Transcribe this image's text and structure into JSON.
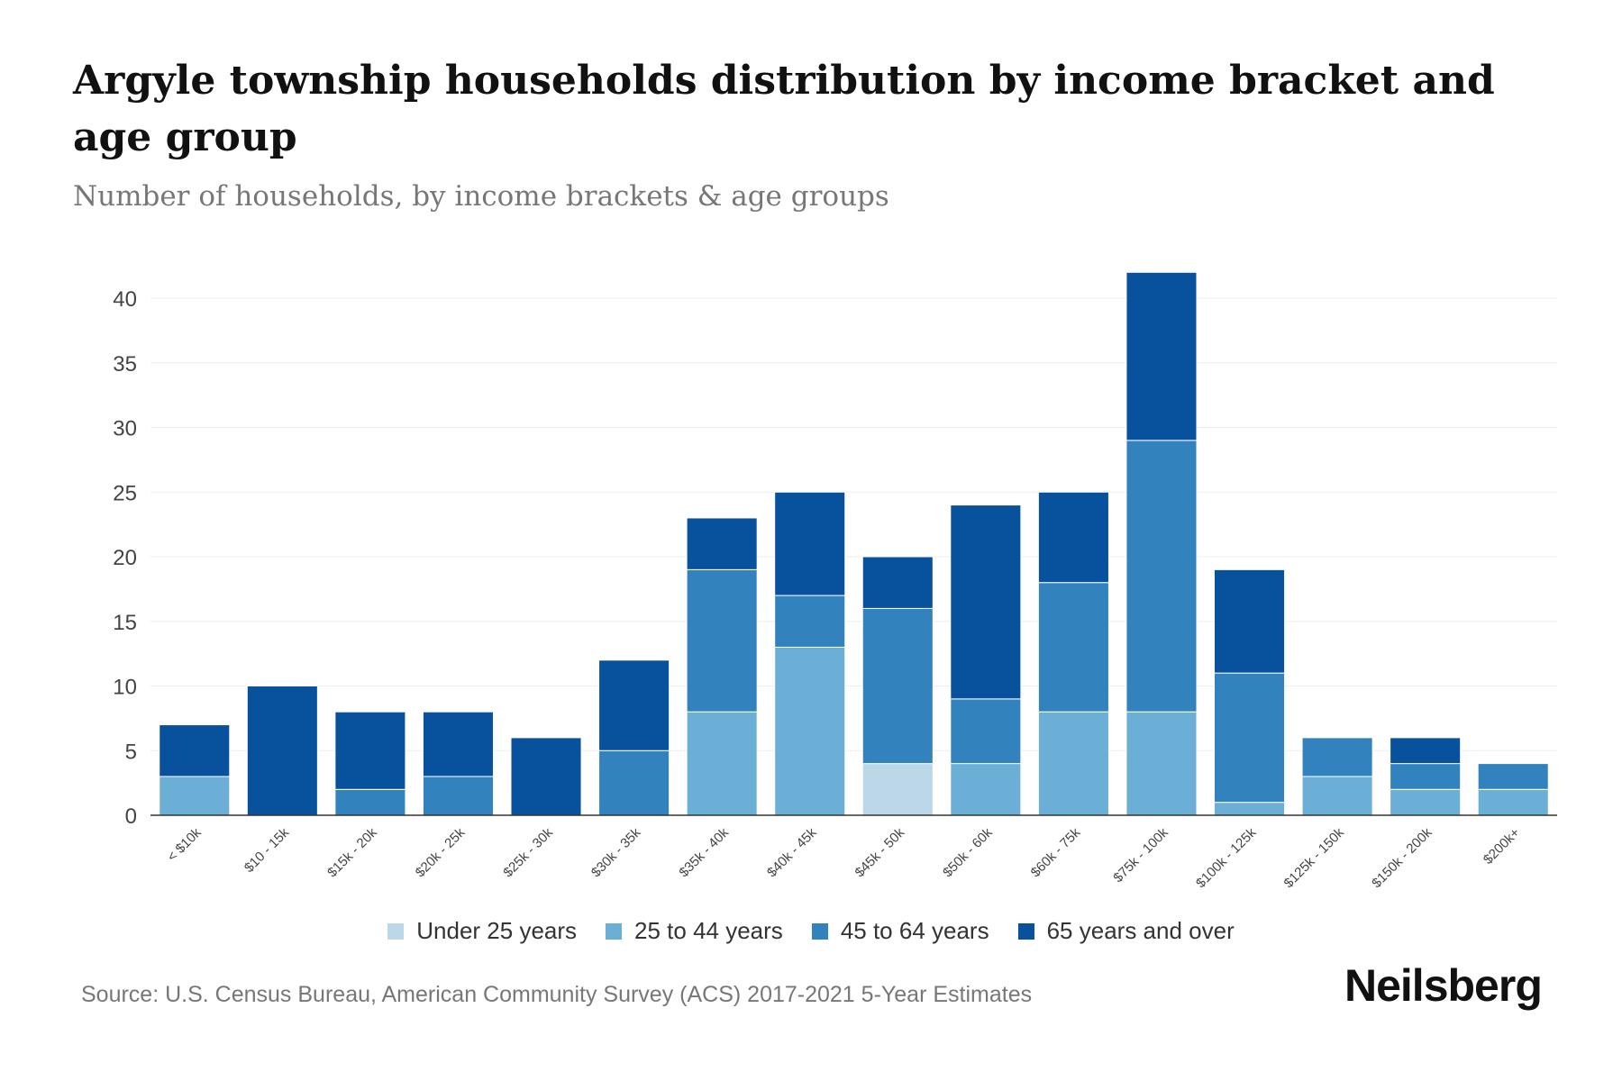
{
  "chart_data": {
    "type": "bar",
    "stacked": true,
    "title": "Argyle township households distribution by income bracket and age group",
    "subtitle": "Number of households, by income brackets & age groups",
    "xlabel": "",
    "ylabel": "",
    "ylim": [
      0,
      42
    ],
    "yticks": [
      0,
      5,
      10,
      15,
      20,
      25,
      30,
      35,
      40
    ],
    "grid": true,
    "legend_position": "bottom",
    "categories": [
      "< $10k",
      "$10 - 15k",
      "$15k - 20k",
      "$20k - 25k",
      "$25k - 30k",
      "$30k - 35k",
      "$35k - 40k",
      "$40k - 45k",
      "$45k - 50k",
      "$50k - 60k",
      "$60k - 75k",
      "$75k - 100k",
      "$100k - 125k",
      "$125k - 150k",
      "$150k - 200k",
      "$200k+"
    ],
    "series": [
      {
        "name": "Under 25 years",
        "color": "#bcd8e8",
        "values": [
          0,
          0,
          0,
          0,
          0,
          0,
          0,
          0,
          4,
          0,
          0,
          0,
          0,
          0,
          0,
          0
        ]
      },
      {
        "name": "25 to 44 years",
        "color": "#6baed6",
        "values": [
          3,
          0,
          0,
          0,
          0,
          0,
          8,
          13,
          0,
          4,
          8,
          8,
          1,
          3,
          2,
          2
        ]
      },
      {
        "name": "45 to 64 years",
        "color": "#3182bd",
        "values": [
          0,
          0,
          2,
          3,
          0,
          5,
          11,
          4,
          12,
          5,
          10,
          21,
          10,
          3,
          2,
          2
        ]
      },
      {
        "name": "65 years and over",
        "color": "#08519c",
        "values": [
          4,
          10,
          6,
          5,
          6,
          7,
          4,
          8,
          4,
          15,
          7,
          13,
          8,
          0,
          2,
          0
        ]
      }
    ]
  },
  "source": "Source: U.S. Census Bureau, American Community Survey (ACS) 2017-2021 5-Year Estimates",
  "brand": "Neilsberg"
}
